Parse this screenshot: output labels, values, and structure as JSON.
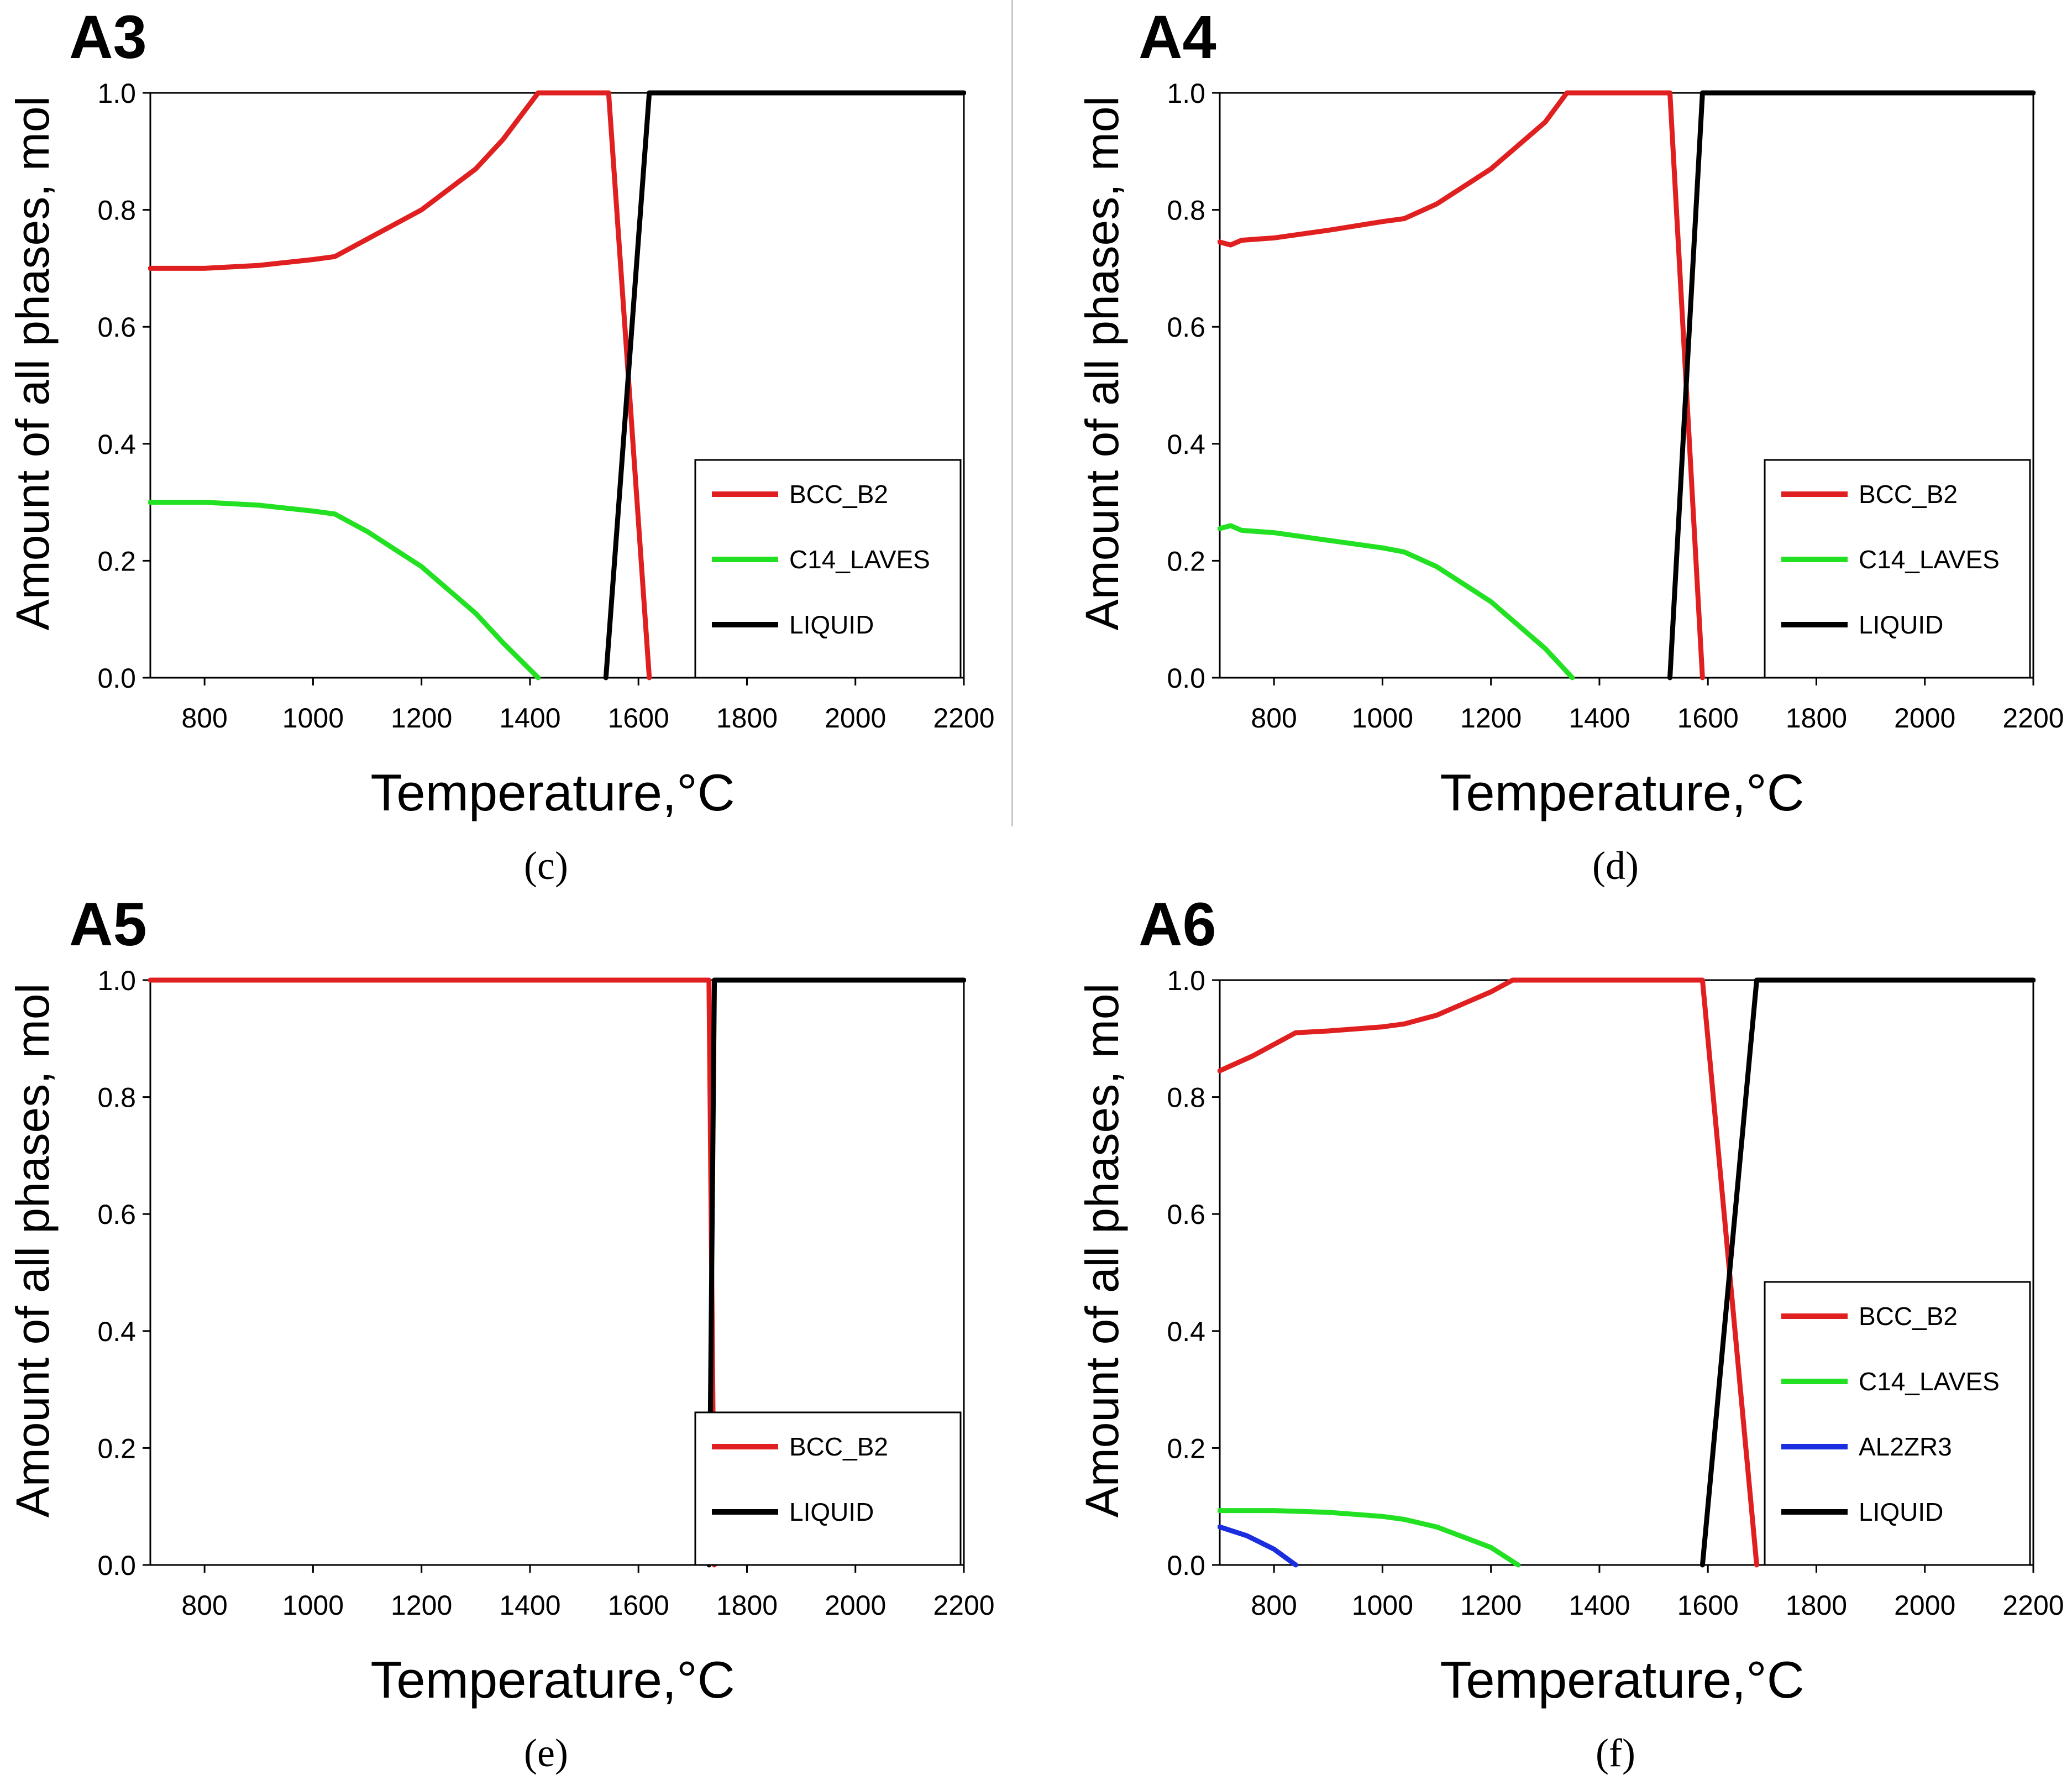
{
  "chart_data": [
    {
      "type": "line",
      "title": "A3",
      "panel_label": "(c)",
      "xlabel": "Temperature,",
      "xlabel_unit": "°C",
      "ylabel": "Amount of all phases, mol",
      "xlim": [
        700,
        2200
      ],
      "ylim": [
        0,
        1.0
      ],
      "xticks": [
        "800",
        "1000",
        "1200",
        "1400",
        "1600",
        "1800",
        "2000",
        "2200"
      ],
      "yticks": [
        "0.0",
        "0.2",
        "0.4",
        "0.6",
        "0.8",
        "1.0"
      ],
      "legend_position": "lower-right",
      "series": [
        {
          "name": "BCC_B2",
          "color": "#e02020",
          "points": [
            [
              700,
              0.7
            ],
            [
              800,
              0.7
            ],
            [
              900,
              0.705
            ],
            [
              1000,
              0.715
            ],
            [
              1040,
              0.72
            ],
            [
              1100,
              0.75
            ],
            [
              1200,
              0.8
            ],
            [
              1300,
              0.87
            ],
            [
              1350,
              0.92
            ],
            [
              1415,
              1.0
            ],
            [
              1545,
              1.0
            ],
            [
              1620,
              0.0
            ]
          ]
        },
        {
          "name": "C14_LAVES",
          "color": "#22e022",
          "points": [
            [
              700,
              0.3
            ],
            [
              800,
              0.3
            ],
            [
              900,
              0.295
            ],
            [
              1000,
              0.285
            ],
            [
              1040,
              0.28
            ],
            [
              1100,
              0.25
            ],
            [
              1200,
              0.19
            ],
            [
              1300,
              0.11
            ],
            [
              1350,
              0.06
            ],
            [
              1415,
              0.0
            ]
          ]
        },
        {
          "name": "LIQUID",
          "color": "#000000",
          "points": [
            [
              1540,
              0.0
            ],
            [
              1620,
              1.0
            ],
            [
              2200,
              1.0
            ]
          ]
        }
      ]
    },
    {
      "type": "line",
      "title": "A4",
      "panel_label": "(d)",
      "xlabel": "Temperature,",
      "xlabel_unit": "°C",
      "ylabel": "Amount of all phases, mol",
      "xlim": [
        700,
        2200
      ],
      "ylim": [
        0,
        1.0
      ],
      "xticks": [
        "800",
        "1000",
        "1200",
        "1400",
        "1600",
        "1800",
        "2000",
        "2200"
      ],
      "yticks": [
        "0.0",
        "0.2",
        "0.4",
        "0.6",
        "0.8",
        "1.0"
      ],
      "legend_position": "lower-right",
      "series": [
        {
          "name": "BCC_B2",
          "color": "#e02020",
          "points": [
            [
              700,
              0.745
            ],
            [
              720,
              0.74
            ],
            [
              740,
              0.748
            ],
            [
              800,
              0.752
            ],
            [
              900,
              0.765
            ],
            [
              1000,
              0.78
            ],
            [
              1040,
              0.785
            ],
            [
              1100,
              0.81
            ],
            [
              1200,
              0.87
            ],
            [
              1300,
              0.95
            ],
            [
              1340,
              1.0
            ],
            [
              1530,
              1.0
            ],
            [
              1590,
              0.0
            ]
          ]
        },
        {
          "name": "C14_LAVES",
          "color": "#22e022",
          "points": [
            [
              700,
              0.255
            ],
            [
              720,
              0.26
            ],
            [
              740,
              0.252
            ],
            [
              800,
              0.248
            ],
            [
              900,
              0.235
            ],
            [
              1000,
              0.222
            ],
            [
              1040,
              0.215
            ],
            [
              1100,
              0.19
            ],
            [
              1200,
              0.13
            ],
            [
              1300,
              0.05
            ],
            [
              1350,
              0.0
            ]
          ]
        },
        {
          "name": "LIQUID",
          "color": "#000000",
          "points": [
            [
              1530,
              0.0
            ],
            [
              1590,
              1.0
            ],
            [
              2200,
              1.0
            ]
          ]
        }
      ]
    },
    {
      "type": "line",
      "title": "A5",
      "panel_label": "(e)",
      "xlabel": "Temperature,",
      "xlabel_unit": "°C",
      "ylabel": "Amount of all phases, mol",
      "xlim": [
        700,
        2200
      ],
      "ylim": [
        0,
        1.0
      ],
      "xticks": [
        "800",
        "1000",
        "1200",
        "1400",
        "1600",
        "1800",
        "2000",
        "2200"
      ],
      "yticks": [
        "0.0",
        "0.2",
        "0.4",
        "0.6",
        "0.8",
        "1.0"
      ],
      "legend_position": "lower-right",
      "series": [
        {
          "name": "BCC_B2",
          "color": "#e02020",
          "points": [
            [
              700,
              1.0
            ],
            [
              1730,
              1.0
            ],
            [
              1740,
              0.0
            ]
          ]
        },
        {
          "name": "LIQUID",
          "color": "#000000",
          "points": [
            [
              1730,
              0.0
            ],
            [
              1740,
              1.0
            ],
            [
              2200,
              1.0
            ]
          ]
        }
      ]
    },
    {
      "type": "line",
      "title": "A6",
      "panel_label": "(f)",
      "xlabel": "Temperature,",
      "xlabel_unit": "°C",
      "ylabel": "Amount of all phases, mol",
      "xlim": [
        700,
        2200
      ],
      "ylim": [
        0,
        1.0
      ],
      "xticks": [
        "800",
        "1000",
        "1200",
        "1400",
        "1600",
        "1800",
        "2000",
        "2200"
      ],
      "yticks": [
        "0.0",
        "0.2",
        "0.4",
        "0.6",
        "0.8",
        "1.0"
      ],
      "legend_position": "lower-right",
      "series": [
        {
          "name": "BCC_B2",
          "color": "#e02020",
          "points": [
            [
              700,
              0.845
            ],
            [
              760,
              0.87
            ],
            [
              840,
              0.91
            ],
            [
              900,
              0.913
            ],
            [
              1000,
              0.92
            ],
            [
              1040,
              0.925
            ],
            [
              1100,
              0.94
            ],
            [
              1200,
              0.98
            ],
            [
              1240,
              1.0
            ],
            [
              1590,
              1.0
            ],
            [
              1690,
              0.0
            ]
          ]
        },
        {
          "name": "C14_LAVES",
          "color": "#22e022",
          "points": [
            [
              700,
              0.093
            ],
            [
              800,
              0.093
            ],
            [
              900,
              0.09
            ],
            [
              1000,
              0.083
            ],
            [
              1040,
              0.078
            ],
            [
              1100,
              0.065
            ],
            [
              1200,
              0.03
            ],
            [
              1250,
              0.0
            ]
          ]
        },
        {
          "name": "AL2ZR3",
          "color": "#1a2ee0",
          "points": [
            [
              700,
              0.065
            ],
            [
              750,
              0.05
            ],
            [
              800,
              0.027
            ],
            [
              840,
              0.0
            ]
          ]
        },
        {
          "name": "LIQUID",
          "color": "#000000",
          "points": [
            [
              1590,
              0.0
            ],
            [
              1690,
              1.0
            ],
            [
              2200,
              1.0
            ]
          ]
        }
      ]
    }
  ]
}
